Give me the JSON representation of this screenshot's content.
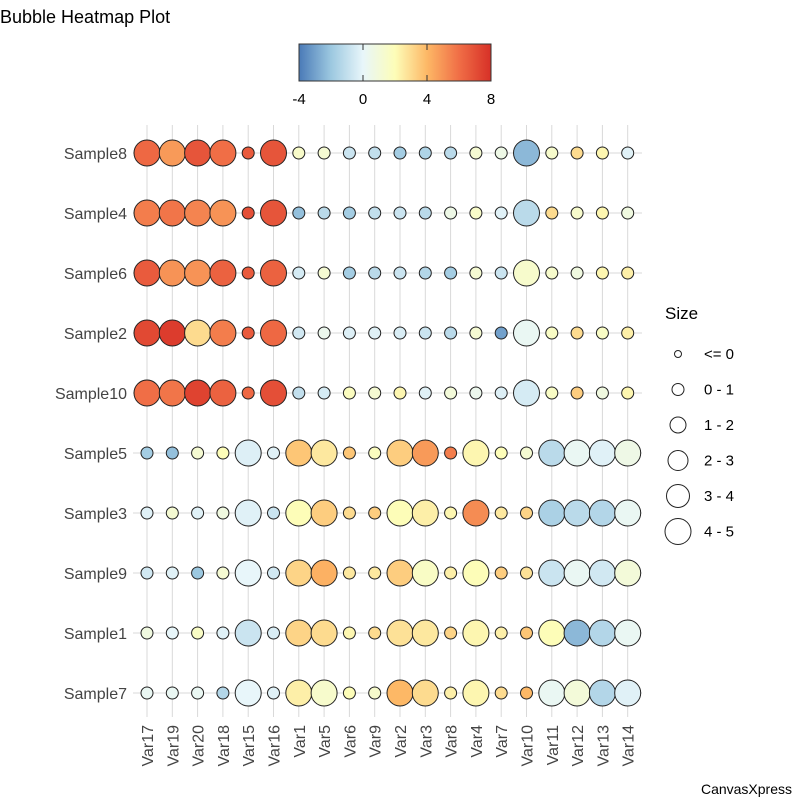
{
  "chart_data": {
    "type": "heatmap",
    "subtype": "bubble",
    "title": "Bubble Heatmap Plot",
    "credit": "CanvasXpress",
    "rows": [
      "Sample8",
      "Sample4",
      "Sample6",
      "Sample2",
      "Sample10",
      "Sample5",
      "Sample3",
      "Sample9",
      "Sample1",
      "Sample7"
    ],
    "columns": [
      "Var17",
      "Var19",
      "Var20",
      "Var18",
      "Var15",
      "Var16",
      "Var1",
      "Var5",
      "Var6",
      "Var9",
      "Var2",
      "Var3",
      "Var8",
      "Var4",
      "Var7",
      "Var10",
      "Var11",
      "Var12",
      "Var13",
      "Var14"
    ],
    "color_scale": {
      "min": -4,
      "max": 8,
      "ticks": [
        "-4",
        "0",
        "4",
        "8"
      ],
      "stops": [
        "#4a7ab7",
        "#9cc8e0",
        "#e8f6fa",
        "#fdfdb8",
        "#fdb866",
        "#f06e46",
        "#d73027"
      ]
    },
    "color_values": [
      [
        6.2,
        4.8,
        6.8,
        6.0,
        6.6,
        6.8,
        1.5,
        1.2,
        -0.8,
        -1.0,
        -1.8,
        -1.5,
        -1.2,
        1.2,
        0.6,
        -2.4,
        1.4,
        3.0,
        2.2,
        -0.2
      ],
      [
        5.6,
        5.8,
        5.4,
        5.0,
        7.0,
        6.8,
        -2.2,
        -1.2,
        -1.8,
        -1.0,
        -0.8,
        -1.2,
        0.6,
        1.5,
        -0.2,
        -1.2,
        3.0,
        1.4,
        2.2,
        0.8
      ],
      [
        6.6,
        5.0,
        5.0,
        6.4,
        6.6,
        6.4,
        -0.5,
        1.2,
        -1.8,
        -1.2,
        -0.8,
        -1.4,
        -1.8,
        1.2,
        -0.8,
        1.4,
        1.4,
        0.8,
        2.2,
        2.4
      ],
      [
        7.2,
        7.6,
        3.0,
        5.6,
        6.6,
        6.2,
        -0.6,
        0.4,
        -0.3,
        -0.2,
        -0.4,
        -0.8,
        -1.2,
        1.2,
        -3.0,
        0.2,
        1.6,
        3.0,
        1.6,
        2.4
      ],
      [
        6.0,
        5.8,
        7.4,
        6.4,
        6.2,
        7.0,
        -1.0,
        -0.5,
        1.8,
        1.2,
        2.2,
        -0.2,
        1.0,
        0.4,
        -0.3,
        -0.5,
        1.6,
        3.4,
        0.8,
        2.2
      ],
      [
        -1.8,
        -2.2,
        1.2,
        2.0,
        -0.3,
        -0.2,
        3.6,
        2.6,
        3.6,
        1.8,
        3.4,
        4.8,
        5.6,
        2.2,
        2.0,
        1.2,
        -1.2,
        0.2,
        -0.2,
        0.6
      ],
      [
        -0.2,
        1.2,
        -0.2,
        0.8,
        -0.2,
        -0.8,
        2.0,
        3.4,
        3.0,
        3.4,
        2.0,
        2.4,
        2.2,
        5.2,
        2.6,
        3.2,
        -1.6,
        -1.2,
        -1.4,
        0.2
      ],
      [
        -0.6,
        -0.2,
        -2.0,
        1.2,
        0.0,
        -0.6,
        3.2,
        4.2,
        2.6,
        2.6,
        3.4,
        1.6,
        2.4,
        2.0,
        3.4,
        2.8,
        -0.8,
        0.2,
        -0.6,
        1.0
      ],
      [
        0.8,
        0.0,
        1.6,
        -0.2,
        -0.8,
        -0.4,
        3.2,
        3.0,
        2.2,
        3.0,
        2.8,
        2.6,
        3.2,
        2.2,
        2.4,
        3.6,
        2.0,
        -2.4,
        -1.4,
        0.2
      ],
      [
        0.2,
        0.2,
        0.2,
        -1.4,
        0.0,
        -0.2,
        2.4,
        1.4,
        2.0,
        1.4,
        4.0,
        3.0,
        2.4,
        2.2,
        3.0,
        4.0,
        0.2,
        1.0,
        -1.4,
        -0.2
      ]
    ],
    "size_values": [
      [
        5,
        5,
        5,
        5,
        1,
        5,
        1,
        1,
        1,
        1,
        1,
        1,
        1,
        1,
        1,
        5,
        1,
        1,
        1,
        1
      ],
      [
        5,
        5,
        5,
        5,
        1,
        5,
        1,
        1,
        1,
        1,
        1,
        1,
        1,
        1,
        1,
        5,
        1,
        1,
        1,
        1
      ],
      [
        5,
        5,
        5,
        5,
        1,
        5,
        1,
        1,
        1,
        1,
        1,
        1,
        1,
        1,
        1,
        5,
        1,
        1,
        1,
        1
      ],
      [
        5,
        5,
        5,
        5,
        1,
        5,
        1,
        1,
        1,
        1,
        1,
        1,
        1,
        1,
        1,
        5,
        1,
        1,
        1,
        1
      ],
      [
        5,
        5,
        5,
        5,
        1,
        5,
        1,
        1,
        1,
        1,
        1,
        1,
        1,
        1,
        1,
        5,
        1,
        1,
        1,
        1
      ],
      [
        1,
        1,
        1,
        1,
        5,
        1,
        5,
        5,
        1,
        1,
        5,
        5,
        1,
        5,
        1,
        1,
        5,
        5,
        5,
        5
      ],
      [
        1,
        1,
        1,
        1,
        5,
        1,
        5,
        5,
        1,
        1,
        5,
        5,
        1,
        5,
        1,
        1,
        5,
        5,
        5,
        5
      ],
      [
        1,
        1,
        1,
        1,
        5,
        1,
        5,
        5,
        1,
        1,
        5,
        5,
        1,
        5,
        1,
        1,
        5,
        5,
        5,
        5
      ],
      [
        1,
        1,
        1,
        1,
        5,
        1,
        5,
        5,
        1,
        1,
        5,
        5,
        1,
        5,
        1,
        1,
        5,
        5,
        5,
        5
      ],
      [
        1,
        1,
        1,
        1,
        5,
        1,
        5,
        5,
        1,
        1,
        5,
        5,
        1,
        5,
        1,
        1,
        5,
        5,
        5,
        5
      ]
    ],
    "size_legend": {
      "title": "Size",
      "entries": [
        "<= 0",
        "0 - 1",
        "1 - 2",
        "2 - 3",
        "3 - 4",
        "4 - 5"
      ]
    },
    "grid": true,
    "legend_position": "right"
  }
}
